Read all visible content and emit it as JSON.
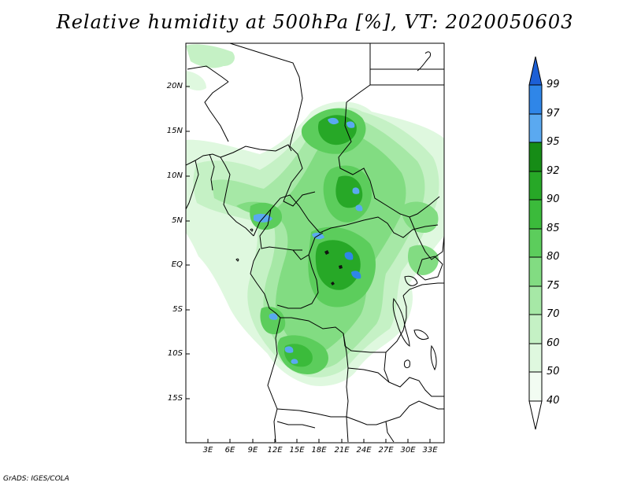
{
  "title": "Relative humidity at 500hPa [%], VT: 2020050603",
  "latitude_ticks": [
    "20N",
    "15N",
    "10N",
    "5N",
    "EQ",
    "5S",
    "10S",
    "15S"
  ],
  "longitude_ticks": [
    "3E",
    "6E",
    "9E",
    "12E",
    "15E",
    "18E",
    "21E",
    "24E",
    "27E",
    "30E",
    "33E"
  ],
  "colorbar": {
    "levels": [
      "99",
      "97",
      "95",
      "92",
      "90",
      "85",
      "80",
      "75",
      "70",
      "60",
      "50",
      "40"
    ],
    "colors": [
      "#1c5fd6",
      "#2f86e8",
      "#5aa9f0",
      "#168c16",
      "#27a827",
      "#3bbb3b",
      "#5ccd5c",
      "#82dc82",
      "#a6e8a6",
      "#c5f1c5",
      "#dff8df",
      "#f2fcf2"
    ]
  },
  "credit": "GrADS: IGES/COLA"
}
